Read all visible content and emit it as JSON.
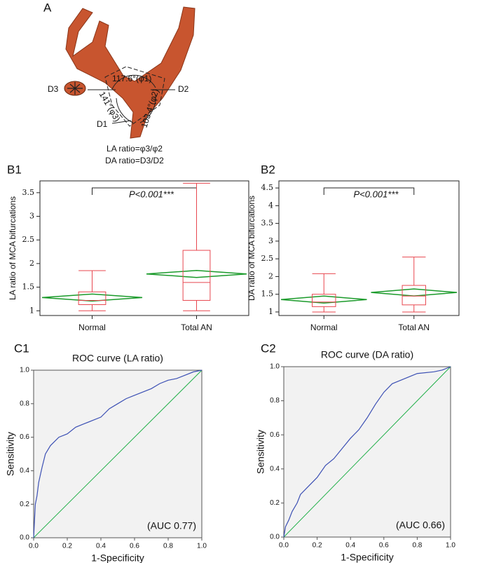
{
  "panel_a": {
    "label": "A",
    "angle_1": "117.6°(φ1)",
    "angle_3": "141°(φ3)",
    "angle_2": "103.4°(φ2)",
    "d1": "D1",
    "d2": "D2",
    "d3": "D3",
    "la_formula": "LA ratio=φ3/φ2",
    "da_formula": "DA ratio=D3/D2"
  },
  "chart_data": [
    {
      "type": "box",
      "panel_label": "B1",
      "ylabel": "LA ratio of MCA bifurcations",
      "annotation": "P<0.001***",
      "categories": [
        "Normal",
        "Total AN"
      ],
      "boxes": [
        {
          "min": 1.0,
          "q1": 1.13,
          "median": 1.22,
          "q3": 1.4,
          "max": 1.85,
          "mean": 1.28
        },
        {
          "min": 1.0,
          "q1": 1.22,
          "median": 1.6,
          "q3": 2.28,
          "max": 3.7,
          "mean": 1.78
        }
      ],
      "color": "#e8474f",
      "mean_color": "#1a9a2a",
      "ylim": [
        0.9,
        3.75
      ],
      "yticks": [
        1,
        1.5,
        2,
        2.5,
        3,
        3.5
      ]
    },
    {
      "type": "box",
      "panel_label": "B2",
      "ylabel": "DA ratio of MCA bifurcations",
      "annotation": "P<0.001***",
      "categories": [
        "Normal",
        "Total AN"
      ],
      "boxes": [
        {
          "min": 1.0,
          "q1": 1.15,
          "median": 1.28,
          "q3": 1.5,
          "max": 2.08,
          "mean": 1.35
        },
        {
          "min": 1.0,
          "q1": 1.2,
          "median": 1.45,
          "q3": 1.75,
          "max": 2.55,
          "mean": 1.55
        }
      ],
      "color": "#e8474f",
      "mean_color": "#1a9a2a",
      "ylim": [
        0.9,
        4.7
      ],
      "yticks": [
        1,
        1.5,
        2,
        2.5,
        3,
        3.5,
        4,
        4.5
      ]
    },
    {
      "type": "line",
      "panel_label": "C1",
      "title": "ROC curve (LA ratio)",
      "xlabel": "1-Specificity",
      "ylabel": "Sensitivity",
      "annotation": "(AUC 0.77)",
      "x": [
        0,
        0.005,
        0.01,
        0.02,
        0.03,
        0.05,
        0.07,
        0.1,
        0.15,
        0.2,
        0.25,
        0.3,
        0.35,
        0.4,
        0.45,
        0.5,
        0.55,
        0.6,
        0.65,
        0.7,
        0.75,
        0.8,
        0.85,
        0.9,
        0.95,
        1
      ],
      "values": [
        0,
        0.1,
        0.2,
        0.25,
        0.33,
        0.42,
        0.5,
        0.55,
        0.6,
        0.62,
        0.66,
        0.68,
        0.7,
        0.72,
        0.77,
        0.8,
        0.83,
        0.85,
        0.87,
        0.89,
        0.92,
        0.94,
        0.95,
        0.97,
        0.99,
        1
      ],
      "color": "#3c50b4",
      "reference_color": "#22b04a",
      "xlim": [
        0,
        1
      ],
      "ylim": [
        0,
        1
      ],
      "xticks": [
        {
          "value": 0,
          "label": "0.0"
        },
        0.2,
        0.4,
        0.6,
        0.8,
        {
          "value": 1,
          "label": "1.0"
        }
      ],
      "yticks": [
        {
          "value": 0,
          "label": "0.0"
        },
        0.2,
        0.4,
        0.6,
        0.8,
        {
          "value": 1,
          "label": "1.0"
        }
      ]
    },
    {
      "type": "line",
      "panel_label": "C2",
      "title": "ROC curve (DA ratio)",
      "xlabel": "1-Specificity",
      "ylabel": "Sensitivity",
      "annotation": "(AUC 0.66)",
      "x": [
        0,
        0.01,
        0.03,
        0.05,
        0.08,
        0.1,
        0.15,
        0.2,
        0.25,
        0.3,
        0.35,
        0.4,
        0.45,
        0.5,
        0.55,
        0.6,
        0.65,
        0.7,
        0.75,
        0.8,
        0.9,
        0.95,
        1
      ],
      "values": [
        0,
        0.06,
        0.1,
        0.15,
        0.2,
        0.25,
        0.3,
        0.35,
        0.42,
        0.46,
        0.52,
        0.58,
        0.63,
        0.7,
        0.78,
        0.85,
        0.9,
        0.92,
        0.94,
        0.96,
        0.97,
        0.98,
        1
      ],
      "color": "#3c50b4",
      "reference_color": "#22b04a",
      "xlim": [
        0,
        1
      ],
      "ylim": [
        0,
        1
      ],
      "xticks": [
        {
          "value": 0,
          "label": "0.0"
        },
        0.2,
        0.4,
        0.6,
        0.8,
        {
          "value": 1,
          "label": "1.0"
        }
      ],
      "yticks": [
        {
          "value": 0,
          "label": "0.0"
        },
        0.2,
        0.4,
        0.6,
        0.8,
        {
          "value": 1,
          "label": "1.0"
        }
      ]
    }
  ]
}
